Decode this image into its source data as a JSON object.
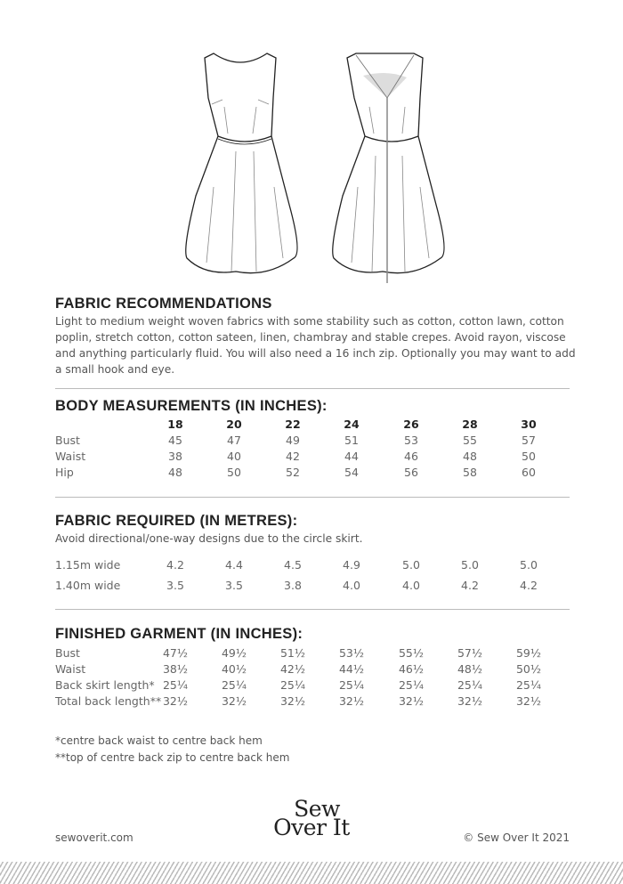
{
  "fabric": {
    "heading": "FABRIC RECOMMENDATIONS",
    "text": "Light to medium weight woven fabrics with some stability such as cotton, cotton lawn, cotton poplin, stretch cotton, cotton sateen, linen, chambray and stable crepes. Avoid rayon, viscose and anything particularly fluid. You will also need a 16 inch zip. Optionally you may want to add a small hook and eye."
  },
  "body": {
    "heading": "BODY MEASUREMENTS (IN INCHES):",
    "sizes": [
      "18",
      "20",
      "22",
      "24",
      "26",
      "28",
      "30"
    ],
    "rows": [
      {
        "label": "Bust",
        "values": [
          "45",
          "47",
          "49",
          "51",
          "53",
          "55",
          "57"
        ]
      },
      {
        "label": "Waist",
        "values": [
          "38",
          "40",
          "42",
          "44",
          "46",
          "48",
          "50"
        ]
      },
      {
        "label": "Hip",
        "values": [
          "48",
          "50",
          "52",
          "54",
          "56",
          "58",
          "60"
        ]
      }
    ]
  },
  "required": {
    "heading": "FABRIC REQUIRED (IN METRES):",
    "note": "Avoid directional/one-way designs due to the circle skirt.",
    "rows": [
      {
        "label": "1.15m wide",
        "values": [
          "4.2",
          "4.4",
          "4.5",
          "4.9",
          "5.0",
          "5.0",
          "5.0"
        ]
      },
      {
        "label": "1.40m wide",
        "values": [
          "3.5",
          "3.5",
          "3.8",
          "4.0",
          "4.0",
          "4.2",
          "4.2"
        ]
      }
    ]
  },
  "finished": {
    "heading": "FINISHED GARMENT (IN INCHES):",
    "rows": [
      {
        "label": "Bust",
        "values": [
          "47½",
          "49½",
          "51½",
          "53½",
          "55½",
          "57½",
          "59½"
        ]
      },
      {
        "label": "Waist",
        "values": [
          "38½",
          "40½",
          "42½",
          "44½",
          "46½",
          "48½",
          "50½"
        ]
      },
      {
        "label": "Back skirt length*",
        "values": [
          "25¼",
          "25¼",
          "25¼",
          "25¼",
          "25¼",
          "25¼",
          "25¼"
        ]
      },
      {
        "label": "Total back length**",
        "values": [
          "32½",
          "32½",
          "32½",
          "32½",
          "32½",
          "32½",
          "32½"
        ]
      }
    ]
  },
  "footnotes": [
    "*centre back waist to centre back hem",
    "**top of centre back zip to centre back hem"
  ],
  "footer": {
    "website": "sewoverit.com",
    "logo_line1": "Sew",
    "logo_line2": "Over It",
    "copyright": "© Sew Over It 2021"
  }
}
